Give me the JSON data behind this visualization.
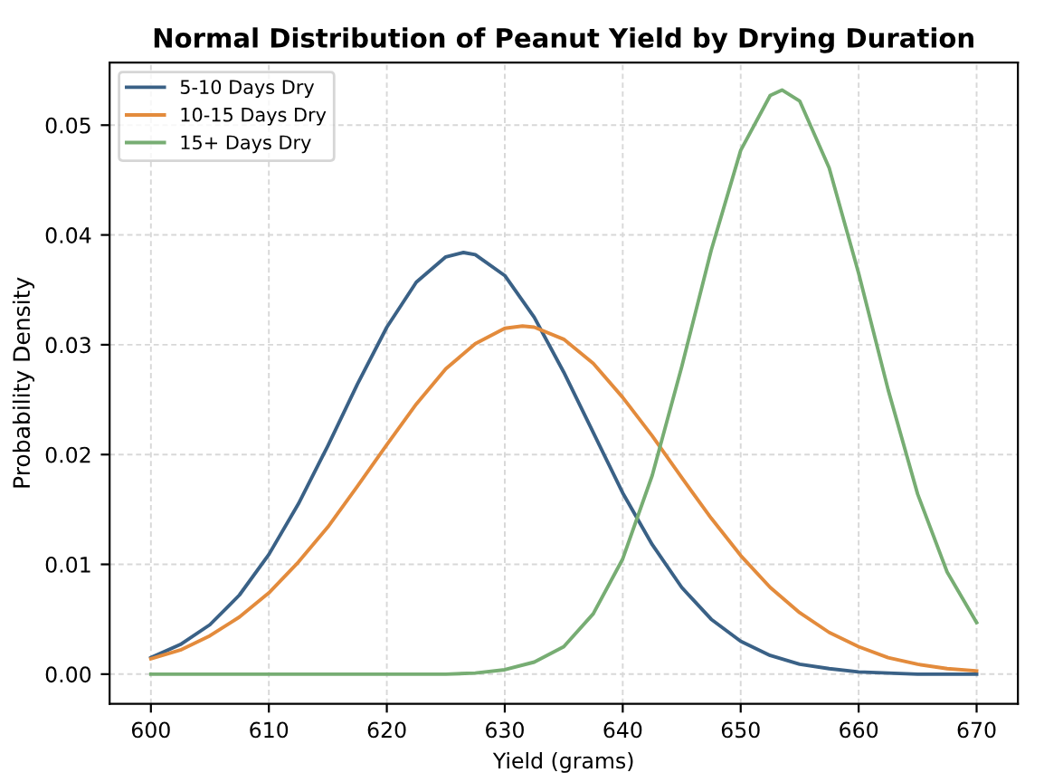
{
  "chart_data": {
    "type": "line",
    "title": "Normal Distribution of Peanut Yield by Drying Duration",
    "xlabel": "Yield (grams)",
    "ylabel": "Probability Density",
    "series": [
      {
        "name": "5-10 Days Dry",
        "color": "#3a6186",
        "x": [
          600,
          602.5,
          605,
          607.5,
          610,
          612.5,
          615,
          617.5,
          620,
          622.5,
          625,
          626.5,
          627.5,
          630,
          632.5,
          635,
          637.5,
          640,
          642.5,
          645,
          647.5,
          650,
          652.5,
          655,
          657.5,
          660,
          662.5,
          665,
          667.5,
          670
        ],
        "values": [
          0.0015,
          0.0027,
          0.0045,
          0.0072,
          0.0109,
          0.0155,
          0.0208,
          0.0264,
          0.0316,
          0.0357,
          0.038,
          0.0384,
          0.0382,
          0.0363,
          0.0325,
          0.0275,
          0.022,
          0.0165,
          0.0118,
          0.0079,
          0.005,
          0.003,
          0.0017,
          0.0009,
          0.0005,
          0.0002,
          0.0001,
          0.0,
          0.0,
          0.0
        ]
      },
      {
        "name": "10-15 Days Dry",
        "color": "#e38b3c",
        "x": [
          600,
          602.5,
          605,
          607.5,
          610,
          612.5,
          615,
          617.5,
          620,
          622.5,
          625,
          627.5,
          630,
          631.5,
          632.5,
          635,
          637.5,
          640,
          642.5,
          645,
          647.5,
          650,
          652.5,
          655,
          657.5,
          660,
          662.5,
          665,
          667.5,
          670
        ],
        "values": [
          0.0014,
          0.0022,
          0.0035,
          0.0052,
          0.0074,
          0.0102,
          0.0134,
          0.0171,
          0.0209,
          0.0246,
          0.0278,
          0.0301,
          0.0315,
          0.0317,
          0.0316,
          0.0305,
          0.0283,
          0.0252,
          0.0217,
          0.0179,
          0.0142,
          0.0108,
          0.0079,
          0.0056,
          0.0038,
          0.0025,
          0.0015,
          0.0009,
          0.0005,
          0.0003
        ]
      },
      {
        "name": "15+ Days Dry",
        "color": "#77ad73",
        "x": [
          600,
          605,
          610,
          615,
          620,
          625,
          627.5,
          630,
          632.5,
          635,
          637.5,
          640,
          642.5,
          645,
          647.5,
          650,
          652.5,
          653.5,
          655,
          657.5,
          660,
          662.5,
          665,
          667.5,
          670
        ],
        "values": [
          0.0,
          0.0,
          0.0,
          0.0,
          0.0,
          0.0,
          0.0001,
          0.0004,
          0.0011,
          0.0025,
          0.0055,
          0.0105,
          0.0181,
          0.028,
          0.0386,
          0.0477,
          0.0527,
          0.0532,
          0.0522,
          0.0461,
          0.0365,
          0.0259,
          0.0164,
          0.0093,
          0.0047
        ]
      }
    ],
    "xlim": [
      596.5,
      673.5
    ],
    "ylim": [
      -0.0027,
      0.0557
    ],
    "xticks": [
      600,
      610,
      620,
      630,
      640,
      650,
      660,
      670
    ],
    "yticks": [
      {
        "value": 0,
        "label": "0.00"
      },
      {
        "value": 0.01,
        "label": "0.01"
      },
      {
        "value": 0.02,
        "label": "0.02"
      },
      {
        "value": 0.03,
        "label": "0.03"
      },
      {
        "value": 0.04,
        "label": "0.04"
      },
      {
        "value": 0.05,
        "label": "0.05"
      }
    ],
    "grid": true,
    "legend": "top left",
    "marker": "none",
    "line_style": "solid"
  }
}
